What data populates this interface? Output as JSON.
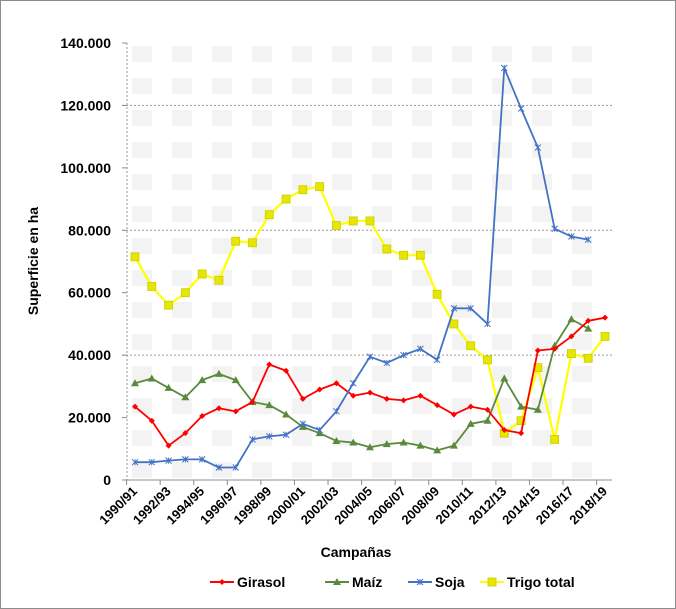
{
  "chart_data": {
    "type": "line",
    "title": "",
    "xlabel": "Campañas",
    "ylabel": "Superficie en ha",
    "ylim": [
      0,
      140000
    ],
    "yticks": [
      0,
      20000,
      40000,
      60000,
      80000,
      100000,
      120000,
      140000
    ],
    "ytick_labels": [
      "0",
      "20.000",
      "40.000",
      "60.000",
      "80.000",
      "100.000",
      "120.000",
      "140.000"
    ],
    "grid": "horizontal dashed at 40.000, 80.000, 120.000",
    "legend_position": "bottom",
    "categories": [
      "1990/91",
      "1991/92",
      "1992/93",
      "1993/94",
      "1994/95",
      "1995/96",
      "1996/97",
      "1997/98",
      "1998/99",
      "1999/00",
      "2000/01",
      "2001/02",
      "2002/03",
      "2003/04",
      "2004/05",
      "2005/06",
      "2006/07",
      "2007/08",
      "2008/09",
      "2009/10",
      "2010/11",
      "2011/12",
      "2012/13",
      "2013/14",
      "2014/15",
      "2015/16",
      "2016/17",
      "2017/18",
      "2018/19"
    ],
    "xtick_labels": [
      "1990/91",
      "1992/93",
      "1994/95",
      "1996/97",
      "1998/99",
      "2000/01",
      "2002/03",
      "2004/05",
      "2006/07",
      "2008/09",
      "2010/11",
      "2012/13",
      "2014/15",
      "2016/17",
      "2018/19"
    ],
    "series": [
      {
        "name": "Girasol",
        "color": "#ff0000",
        "marker": "diamond",
        "values": [
          23500,
          19000,
          11000,
          15000,
          20500,
          23000,
          22000,
          25000,
          37000,
          35000,
          26000,
          29000,
          31000,
          27000,
          28000,
          26000,
          25500,
          27000,
          24000,
          21000,
          23500,
          22500,
          16000,
          15000,
          41500,
          42000,
          46000,
          51000,
          52000
        ]
      },
      {
        "name": "Maíz",
        "color": "#5b8a3c",
        "marker": "triangle",
        "values": [
          31000,
          32500,
          29500,
          26500,
          32000,
          34000,
          32000,
          25000,
          24000,
          21000,
          17000,
          15000,
          12500,
          12000,
          10500,
          11500,
          12000,
          11000,
          9500,
          11000,
          18000,
          19000,
          32500,
          23500,
          22500,
          43000,
          51500,
          48500,
          null
        ]
      },
      {
        "name": "Soja",
        "color": "#4472c4",
        "marker": "star",
        "values": [
          5700,
          5700,
          6200,
          6600,
          6600,
          4000,
          4000,
          13000,
          14000,
          14500,
          18000,
          16000,
          22000,
          31000,
          39500,
          37500,
          40000,
          42000,
          38500,
          55000,
          55000,
          50000,
          132000,
          119000,
          106500,
          80500,
          78000,
          77000,
          null
        ]
      },
      {
        "name": "Trigo total",
        "color": "#ffff00",
        "marker": "square",
        "values": [
          71500,
          62000,
          56000,
          60000,
          66000,
          64000,
          76500,
          76000,
          85000,
          90000,
          93000,
          94000,
          81500,
          83000,
          83000,
          74000,
          72000,
          72000,
          59500,
          50000,
          43000,
          38500,
          15000,
          19000,
          36000,
          13000,
          40500,
          39000,
          46000
        ]
      }
    ]
  },
  "legend": {
    "items": [
      {
        "label": "Girasol",
        "color": "#ff0000"
      },
      {
        "label": "Maíz",
        "color": "#5b8a3c"
      },
      {
        "label": "Soja",
        "color": "#4472c4"
      },
      {
        "label": "Trigo total",
        "color": "#ffff00"
      }
    ]
  }
}
